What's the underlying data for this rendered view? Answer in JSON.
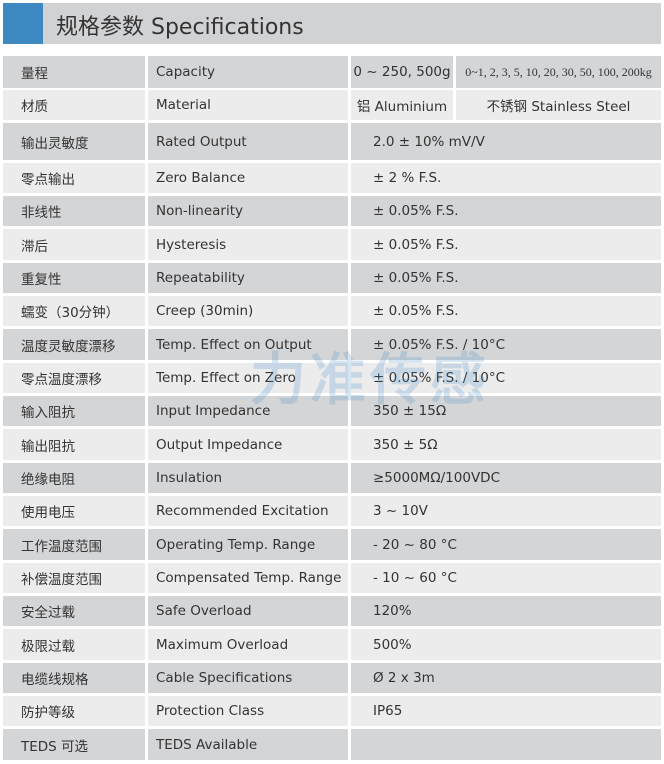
{
  "header": {
    "title": "规格参数 Specifications"
  },
  "watermark": "力准传感",
  "colors": {
    "accent": "#3f89c3",
    "row_dark": "#d4d5d7",
    "row_light": "#ececed",
    "title_bar": "#d1d2d4"
  },
  "specs": [
    {
      "zh": "量程",
      "en": "Capacity",
      "value_a": "0 ~ 250, 500g",
      "value_b": "0~1, 2, 3, 5, 10, 20, 30, 50, 100, 200kg"
    },
    {
      "zh": "材质",
      "en": "Material",
      "value_a": "铝 Aluminium",
      "value_b": "不锈钢 Stainless Steel"
    },
    {
      "zh": "输出灵敏度",
      "en": "Rated Output",
      "value": "2.0 ± 10% mV/V"
    },
    {
      "zh": "零点输出",
      "en": "Zero Balance",
      "value": "± 2 % F.S."
    },
    {
      "zh": "非线性",
      "en": "Non-linearity",
      "value": "± 0.05% F.S."
    },
    {
      "zh": "滞后",
      "en": "Hysteresis",
      "value": "± 0.05% F.S."
    },
    {
      "zh": "重复性",
      "en": "Repeatability",
      "value": "± 0.05% F.S."
    },
    {
      "zh": "蠕变（30分钟）",
      "en": "Creep (30min)",
      "value": "± 0.05% F.S."
    },
    {
      "zh": "温度灵敏度漂移",
      "en": "Temp. Effect on Output",
      "value": "± 0.05% F.S. / 10°C"
    },
    {
      "zh": "零点温度漂移",
      "en": "Temp. Effect on Zero",
      "value": "± 0.05% F.S. / 10°C"
    },
    {
      "zh": "输入阻抗",
      "en": "Input Impedance",
      "value": "350 ± 15Ω"
    },
    {
      "zh": "输出阻抗",
      "en": "Output Impedance",
      "value": "350 ± 5Ω"
    },
    {
      "zh": "绝缘电阻",
      "en": "Insulation",
      "value": "≥5000MΩ/100VDC"
    },
    {
      "zh": "使用电压",
      "en": "Recommended Excitation",
      "value": "3 ~ 10V"
    },
    {
      "zh": "工作温度范围",
      "en": "Operating Temp. Range",
      "value": "- 20 ~ 80 °C"
    },
    {
      "zh": "补偿温度范围",
      "en": "Compensated Temp. Range",
      "value": "- 10 ~ 60 °C"
    },
    {
      "zh": "安全过载",
      "en": "Safe Overload",
      "value": "120%"
    },
    {
      "zh": "极限过载",
      "en": "Maximum Overload",
      "value": "500%"
    },
    {
      "zh": "电缆线规格",
      "en": "Cable Specifications",
      "value": "Ø 2 x 3m"
    },
    {
      "zh": "防护等级",
      "en": "Protection Class",
      "value": "IP65"
    },
    {
      "zh": "TEDS 可选",
      "en": "TEDS Available",
      "value": ""
    }
  ]
}
